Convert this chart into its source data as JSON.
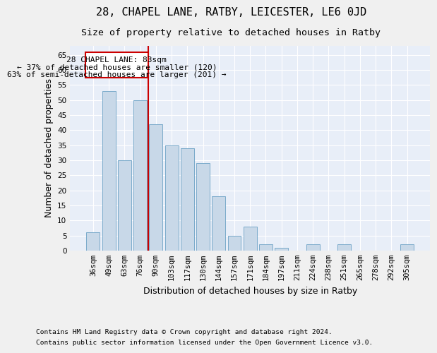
{
  "title": "28, CHAPEL LANE, RATBY, LEICESTER, LE6 0JD",
  "subtitle": "Size of property relative to detached houses in Ratby",
  "xlabel": "Distribution of detached houses by size in Ratby",
  "ylabel": "Number of detached properties",
  "bar_color": "#c8d8e8",
  "bar_edge_color": "#7aaaca",
  "background_color": "#e8eef8",
  "grid_color": "#ffffff",
  "categories": [
    "36sqm",
    "49sqm",
    "63sqm",
    "76sqm",
    "90sqm",
    "103sqm",
    "117sqm",
    "130sqm",
    "144sqm",
    "157sqm",
    "171sqm",
    "184sqm",
    "197sqm",
    "211sqm",
    "224sqm",
    "238sqm",
    "251sqm",
    "265sqm",
    "278sqm",
    "292sqm",
    "305sqm"
  ],
  "values": [
    6,
    53,
    30,
    50,
    42,
    35,
    34,
    29,
    18,
    5,
    8,
    2,
    1,
    0,
    2,
    0,
    2,
    0,
    0,
    0,
    2
  ],
  "ylim": [
    0,
    68
  ],
  "yticks": [
    0,
    5,
    10,
    15,
    20,
    25,
    30,
    35,
    40,
    45,
    50,
    55,
    60,
    65
  ],
  "marker_label": "28 CHAPEL LANE: 83sqm",
  "annotation_line1": "← 37% of detached houses are smaller (120)",
  "annotation_line2": "63% of semi-detached houses are larger (201) →",
  "footnote1": "Contains HM Land Registry data © Crown copyright and database right 2024.",
  "footnote2": "Contains public sector information licensed under the Open Government Licence v3.0.",
  "marker_color": "#cc0000",
  "box_color": "#cc0000",
  "title_fontsize": 11,
  "subtitle_fontsize": 9.5,
  "axis_label_fontsize": 9,
  "tick_fontsize": 7.5,
  "annotation_fontsize": 8,
  "footnote_fontsize": 6.8,
  "fig_bg": "#f0f0f0"
}
